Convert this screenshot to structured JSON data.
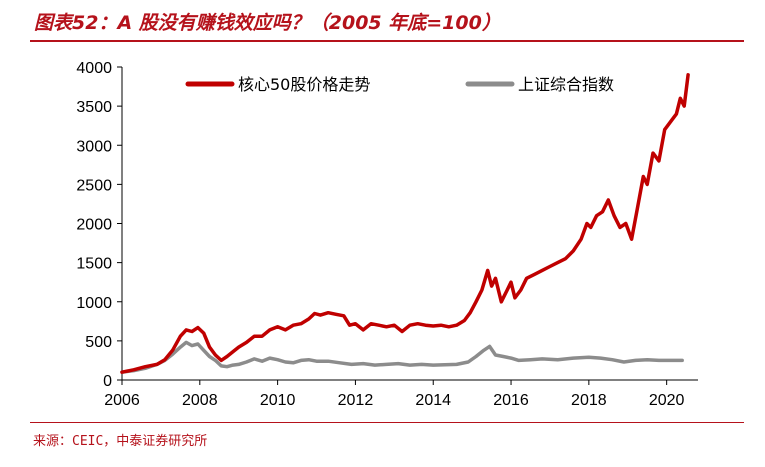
{
  "title": "图表52：A 股没有赚钱效应吗？（2005 年底=100）",
  "source": "来源：CEIC，中泰证券研究所",
  "colors": {
    "accent": "#b5121b",
    "series1": "#c00000",
    "series2": "#8c8c8c"
  },
  "chart_data": {
    "type": "line",
    "title": "图表52：A 股没有赚钱效应吗？（2005 年底=100）",
    "xlabel": "",
    "ylabel": "",
    "xlim": [
      2006,
      2020.6
    ],
    "ylim": [
      0,
      4000
    ],
    "xticks": [
      2006,
      2008,
      2010,
      2012,
      2014,
      2016,
      2018,
      2020
    ],
    "yticks": [
      0,
      500,
      1000,
      1500,
      2000,
      2500,
      3000,
      3500,
      4000
    ],
    "grid": false,
    "legend_position": "top",
    "series": [
      {
        "name": "核心50股价格走势",
        "color": "#c00000",
        "x": [
          2006.0,
          2006.3,
          2006.6,
          2006.9,
          2007.1,
          2007.3,
          2007.5,
          2007.65,
          2007.8,
          2007.95,
          2008.1,
          2008.25,
          2008.4,
          2008.55,
          2008.7,
          2008.85,
          2009.0,
          2009.2,
          2009.4,
          2009.6,
          2009.8,
          2010.0,
          2010.2,
          2010.4,
          2010.6,
          2010.8,
          2010.95,
          2011.1,
          2011.3,
          2011.5,
          2011.7,
          2011.85,
          2012.0,
          2012.2,
          2012.4,
          2012.6,
          2012.8,
          2013.0,
          2013.2,
          2013.4,
          2013.6,
          2013.8,
          2014.0,
          2014.2,
          2014.4,
          2014.6,
          2014.8,
          2014.95,
          2015.1,
          2015.25,
          2015.4,
          2015.5,
          2015.6,
          2015.75,
          2015.9,
          2016.0,
          2016.1,
          2016.25,
          2016.4,
          2016.6,
          2016.8,
          2017.0,
          2017.2,
          2017.4,
          2017.6,
          2017.8,
          2017.95,
          2018.05,
          2018.2,
          2018.35,
          2018.5,
          2018.65,
          2018.8,
          2018.95,
          2019.1,
          2019.25,
          2019.4,
          2019.5,
          2019.65,
          2019.8,
          2019.95,
          2020.1,
          2020.25,
          2020.35,
          2020.45,
          2020.55
        ],
        "values": [
          100,
          130,
          170,
          200,
          260,
          380,
          560,
          640,
          620,
          670,
          600,
          420,
          320,
          250,
          300,
          360,
          420,
          480,
          560,
          560,
          640,
          680,
          640,
          700,
          720,
          780,
          850,
          830,
          860,
          840,
          820,
          700,
          720,
          640,
          720,
          700,
          680,
          700,
          620,
          700,
          720,
          700,
          690,
          700,
          680,
          700,
          760,
          860,
          1000,
          1150,
          1400,
          1200,
          1300,
          1000,
          1150,
          1250,
          1050,
          1150,
          1300,
          1350,
          1400,
          1450,
          1500,
          1550,
          1650,
          1800,
          2000,
          1950,
          2100,
          2150,
          2300,
          2100,
          1950,
          2000,
          1800,
          2200,
          2600,
          2500,
          2900,
          2800,
          3200,
          3300,
          3400,
          3600,
          3500,
          3900
        ]
      },
      {
        "name": "上证综合指数",
        "color": "#8c8c8c",
        "x": [
          2006.0,
          2006.3,
          2006.6,
          2006.9,
          2007.1,
          2007.3,
          2007.5,
          2007.65,
          2007.8,
          2007.95,
          2008.1,
          2008.25,
          2008.4,
          2008.55,
          2008.7,
          2008.85,
          2009.0,
          2009.2,
          2009.4,
          2009.6,
          2009.8,
          2010.0,
          2010.2,
          2010.4,
          2010.6,
          2010.8,
          2011.0,
          2011.3,
          2011.6,
          2011.9,
          2012.2,
          2012.5,
          2012.8,
          2013.1,
          2013.4,
          2013.7,
          2014.0,
          2014.3,
          2014.6,
          2014.9,
          2015.1,
          2015.3,
          2015.45,
          2015.6,
          2015.8,
          2016.0,
          2016.2,
          2016.5,
          2016.8,
          2017.2,
          2017.6,
          2018.0,
          2018.3,
          2018.6,
          2018.9,
          2019.2,
          2019.5,
          2019.8,
          2020.1,
          2020.4
        ],
        "values": [
          100,
          120,
          150,
          200,
          250,
          330,
          420,
          480,
          440,
          460,
          380,
          300,
          250,
          180,
          170,
          190,
          200,
          230,
          270,
          240,
          280,
          260,
          230,
          220,
          250,
          260,
          240,
          240,
          220,
          200,
          210,
          190,
          200,
          210,
          190,
          200,
          190,
          195,
          200,
          230,
          300,
          380,
          430,
          320,
          300,
          280,
          250,
          260,
          270,
          260,
          280,
          290,
          280,
          260,
          230,
          250,
          260,
          250,
          250,
          250
        ]
      }
    ]
  }
}
